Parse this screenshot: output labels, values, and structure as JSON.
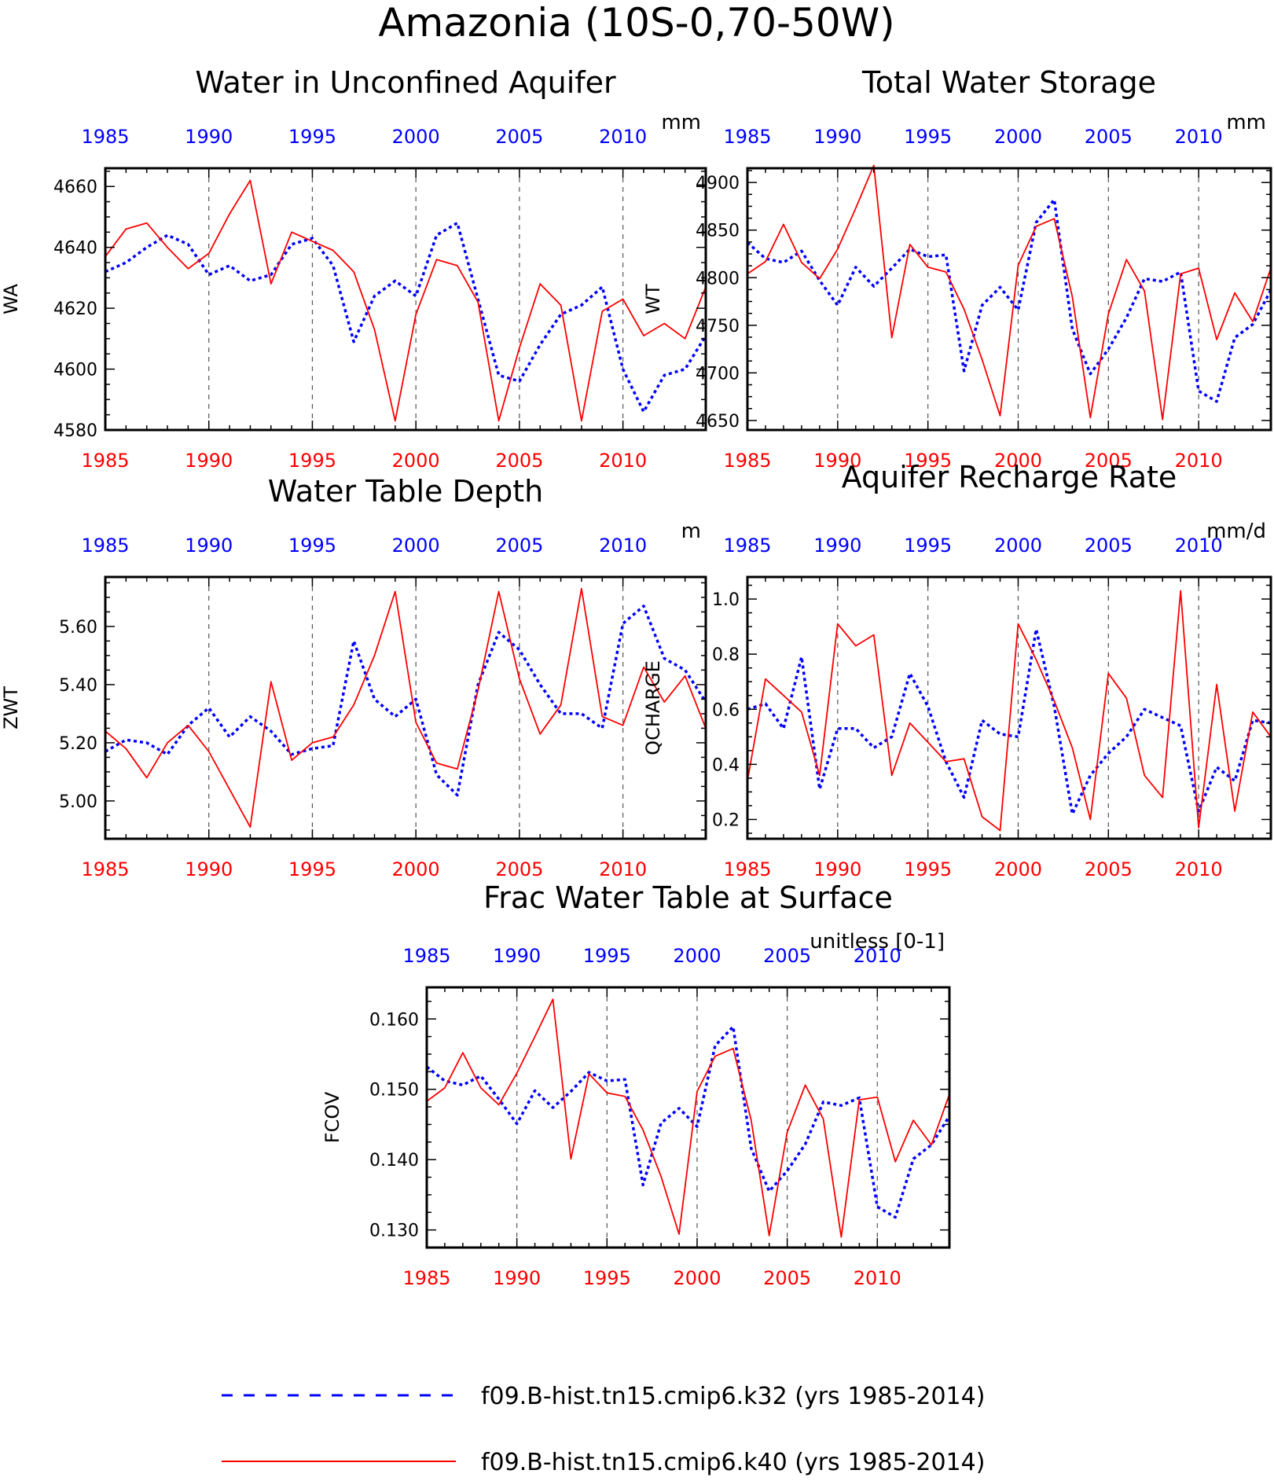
{
  "title": "Amazonia (10S-0,70-50W)",
  "colors": {
    "k32": "#0000ff",
    "k40": "#ff0000",
    "axis": "#000000"
  },
  "legend": [
    {
      "label": "f09.B-hist.tn15.cmip6.k32 (yrs 1985-2014)",
      "color": "#0000ff",
      "style": "dashed"
    },
    {
      "label": "f09.B-hist.tn15.cmip6.k40 (yrs 1985-2014)",
      "color": "#ff0000",
      "style": "solid"
    }
  ],
  "chart_data": [
    {
      "type": "line",
      "title": "Water in Unconfined Aquifer",
      "units": "mm",
      "ylabel": "WA",
      "ylim": [
        4580,
        4666
      ],
      "yticks": [
        4580,
        4600,
        4620,
        4640,
        4660
      ],
      "tick_decimals": 0,
      "xlim": [
        1985,
        2014
      ],
      "year_labels": [
        1985,
        1990,
        1995,
        2000,
        2005,
        2010
      ],
      "dashed_gridlines": [
        1990,
        1995,
        2000,
        2005,
        2010
      ],
      "x": [
        1985,
        1986,
        1987,
        1988,
        1989,
        1990,
        1991,
        1992,
        1993,
        1994,
        1995,
        1996,
        1997,
        1998,
        1999,
        2000,
        2001,
        2002,
        2003,
        2004,
        2005,
        2006,
        2007,
        2008,
        2009,
        2010,
        2011,
        2012,
        2013,
        2014
      ],
      "series": [
        {
          "name": "f09.B-hist.tn15.cmip6.k32 (yrs 1985-2014)",
          "key": "k32",
          "values": [
            4632,
            4635,
            4640,
            4644,
            4641,
            4631,
            4634,
            4629,
            4631,
            4641,
            4643,
            4634,
            4609,
            4624,
            4629,
            4624,
            4644,
            4648,
            4623,
            4598,
            4596,
            4608,
            4618,
            4621,
            4627,
            4600,
            4586,
            4598,
            4600,
            4611
          ]
        },
        {
          "name": "f09.B-hist.tn15.cmip6.k40 (yrs 1985-2014)",
          "key": "k40",
          "values": [
            4637,
            4646,
            4648,
            4640,
            4633,
            4638,
            4651,
            4662,
            4628,
            4645,
            4642,
            4639,
            4632,
            4613,
            4583,
            4618,
            4636,
            4634,
            4622,
            4583,
            4607,
            4628,
            4621,
            4583,
            4619,
            4623,
            4611,
            4615,
            4610,
            4627
          ]
        }
      ]
    },
    {
      "type": "line",
      "title": "Total Water Storage",
      "units": "mm",
      "ylabel": "WT",
      "ylim": [
        4640,
        4915
      ],
      "yticks": [
        4650,
        4700,
        4750,
        4800,
        4850,
        4900
      ],
      "tick_decimals": 0,
      "xlim": [
        1985,
        2014
      ],
      "year_labels": [
        1985,
        1990,
        1995,
        2000,
        2005,
        2010
      ],
      "dashed_gridlines": [
        1990,
        1995,
        2000,
        2005,
        2010
      ],
      "x": [
        1985,
        1986,
        1987,
        1988,
        1989,
        1990,
        1991,
        1992,
        1993,
        1994,
        1995,
        1996,
        1997,
        1998,
        1999,
        2000,
        2001,
        2002,
        2003,
        2004,
        2005,
        2006,
        2007,
        2008,
        2009,
        2010,
        2011,
        2012,
        2013,
        2014
      ],
      "series": [
        {
          "name": "f09.B-hist.tn15.cmip6.k32 (yrs 1985-2014)",
          "key": "k32",
          "values": [
            4837,
            4820,
            4816,
            4828,
            4797,
            4771,
            4811,
            4791,
            4810,
            4830,
            4822,
            4824,
            4702,
            4771,
            4790,
            4766,
            4858,
            4882,
            4746,
            4699,
            4725,
            4758,
            4799,
            4796,
            4806,
            4681,
            4670,
            4737,
            4751,
            4787
          ]
        },
        {
          "name": "f09.B-hist.tn15.cmip6.k40 (yrs 1985-2014)",
          "key": "k40",
          "values": [
            4804,
            4817,
            4856,
            4816,
            4799,
            4830,
            4873,
            4918,
            4737,
            4835,
            4811,
            4806,
            4767,
            4714,
            4655,
            4813,
            4854,
            4862,
            4780,
            4653,
            4762,
            4819,
            4786,
            4651,
            4804,
            4810,
            4735,
            4784,
            4754,
            4810
          ]
        }
      ]
    },
    {
      "type": "line",
      "title": "Water Table Depth",
      "units": "m",
      "ylabel": "ZWT",
      "ylim": [
        4.87,
        5.77
      ],
      "yticks": [
        5.0,
        5.2,
        5.4,
        5.6
      ],
      "tick_decimals": 2,
      "xlim": [
        1985,
        2014
      ],
      "year_labels": [
        1985,
        1990,
        1995,
        2000,
        2005,
        2010
      ],
      "dashed_gridlines": [
        1990,
        1995,
        2000,
        2005,
        2010
      ],
      "x": [
        1985,
        1986,
        1987,
        1988,
        1989,
        1990,
        1991,
        1992,
        1993,
        1994,
        1995,
        1996,
        1997,
        1998,
        1999,
        2000,
        2001,
        2002,
        2003,
        2004,
        2005,
        2006,
        2007,
        2008,
        2009,
        2010,
        2011,
        2012,
        2013,
        2014
      ],
      "series": [
        {
          "name": "f09.B-hist.tn15.cmip6.k32 (yrs 1985-2014)",
          "key": "k32",
          "values": [
            5.17,
            5.21,
            5.2,
            5.16,
            5.26,
            5.32,
            5.22,
            5.29,
            5.24,
            5.16,
            5.18,
            5.19,
            5.55,
            5.35,
            5.29,
            5.35,
            5.09,
            5.02,
            5.4,
            5.58,
            5.52,
            5.4,
            5.3,
            5.3,
            5.25,
            5.61,
            5.67,
            5.49,
            5.45,
            5.34
          ]
        },
        {
          "name": "f09.B-hist.tn15.cmip6.k40 (yrs 1985-2014)",
          "key": "k40",
          "values": [
            5.24,
            5.18,
            5.08,
            5.2,
            5.26,
            5.17,
            5.04,
            4.91,
            5.41,
            5.14,
            5.2,
            5.22,
            5.33,
            5.5,
            5.72,
            5.27,
            5.13,
            5.11,
            5.38,
            5.72,
            5.42,
            5.23,
            5.33,
            5.73,
            5.29,
            5.26,
            5.46,
            5.34,
            5.43,
            5.25
          ]
        }
      ]
    },
    {
      "type": "line",
      "title": "Aquifer Recharge Rate",
      "units": "mm/d",
      "ylabel": "QCHARGE",
      "ylim": [
        0.13,
        1.08
      ],
      "yticks": [
        0.2,
        0.4,
        0.6,
        0.8,
        1.0
      ],
      "tick_decimals": 1,
      "xlim": [
        1985,
        2014
      ],
      "year_labels": [
        1985,
        1990,
        1995,
        2000,
        2005,
        2010
      ],
      "dashed_gridlines": [
        1990,
        1995,
        2000,
        2005,
        2010
      ],
      "x": [
        1985,
        1986,
        1987,
        1988,
        1989,
        1990,
        1991,
        1992,
        1993,
        1994,
        1995,
        1996,
        1997,
        1998,
        1999,
        2000,
        2001,
        2002,
        2003,
        2004,
        2005,
        2006,
        2007,
        2008,
        2009,
        2010,
        2011,
        2012,
        2013,
        2014
      ],
      "series": [
        {
          "name": "f09.B-hist.tn15.cmip6.k32 (yrs 1985-2014)",
          "key": "k32",
          "values": [
            0.6,
            0.62,
            0.53,
            0.79,
            0.31,
            0.53,
            0.53,
            0.46,
            0.5,
            0.73,
            0.61,
            0.41,
            0.28,
            0.56,
            0.51,
            0.5,
            0.89,
            0.61,
            0.22,
            0.36,
            0.44,
            0.5,
            0.6,
            0.57,
            0.54,
            0.23,
            0.39,
            0.34,
            0.56,
            0.55
          ]
        },
        {
          "name": "f09.B-hist.tn15.cmip6.k40 (yrs 1985-2014)",
          "key": "k40",
          "values": [
            0.34,
            0.71,
            0.65,
            0.59,
            0.36,
            0.91,
            0.83,
            0.87,
            0.36,
            0.55,
            0.48,
            0.41,
            0.42,
            0.21,
            0.16,
            0.91,
            0.78,
            0.63,
            0.46,
            0.2,
            0.73,
            0.64,
            0.36,
            0.28,
            1.03,
            0.17,
            0.69,
            0.23,
            0.59,
            0.5
          ]
        }
      ]
    },
    {
      "type": "line",
      "title": "Frac Water Table at Surface",
      "units": "unitless [0-1]",
      "ylabel": "FCOV",
      "ylim": [
        0.1275,
        0.1645
      ],
      "yticks": [
        0.13,
        0.14,
        0.15,
        0.16
      ],
      "tick_decimals": 3,
      "xlim": [
        1985,
        2014
      ],
      "year_labels": [
        1985,
        1990,
        1995,
        2000,
        2005,
        2010
      ],
      "dashed_gridlines": [
        1990,
        1995,
        2000,
        2005,
        2010
      ],
      "x": [
        1985,
        1986,
        1987,
        1988,
        1989,
        1990,
        1991,
        1992,
        1993,
        1994,
        1995,
        1996,
        1997,
        1998,
        1999,
        2000,
        2001,
        2002,
        2003,
        2004,
        2005,
        2006,
        2007,
        2008,
        2009,
        2010,
        2011,
        2012,
        2013,
        2014
      ],
      "series": [
        {
          "name": "f09.B-hist.tn15.cmip6.k32 (yrs 1985-2014)",
          "key": "k32",
          "values": [
            0.1532,
            0.1512,
            0.1506,
            0.1519,
            0.1486,
            0.1451,
            0.1498,
            0.1474,
            0.1497,
            0.1524,
            0.1512,
            0.1514,
            0.1364,
            0.1452,
            0.1473,
            0.1447,
            0.1562,
            0.1589,
            0.1416,
            0.1355,
            0.1384,
            0.1422,
            0.1482,
            0.1477,
            0.1488,
            0.1333,
            0.1318,
            0.1401,
            0.1421,
            0.1462
          ]
        },
        {
          "name": "f09.B-hist.tn15.cmip6.k40 (yrs 1985-2014)",
          "key": "k40",
          "values": [
            0.1483,
            0.1502,
            0.1552,
            0.1502,
            0.1478,
            0.1523,
            0.1575,
            0.1628,
            0.1401,
            0.1522,
            0.1495,
            0.149,
            0.1442,
            0.1376,
            0.1294,
            0.1497,
            0.1547,
            0.1558,
            0.1456,
            0.1292,
            0.1439,
            0.1506,
            0.1458,
            0.129,
            0.1485,
            0.1489,
            0.1397,
            0.1456,
            0.1421,
            0.1493
          ]
        }
      ]
    }
  ]
}
